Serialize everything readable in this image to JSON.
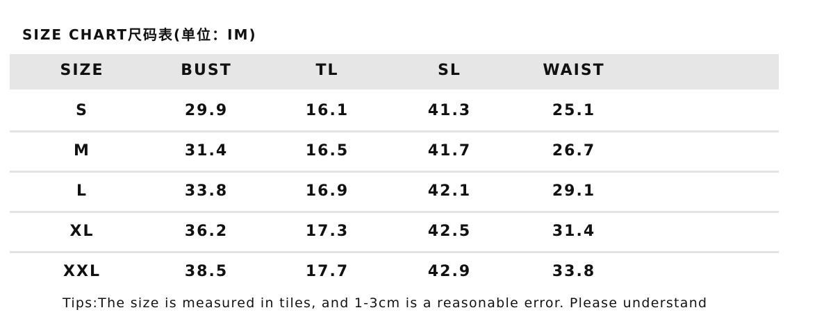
{
  "title": "SIZE CHART尺码表(单位：IM)",
  "table": {
    "header": [
      "SIZE",
      "BUST",
      "TL",
      "SL",
      "WAIST"
    ],
    "rows": [
      [
        "S",
        "29.9",
        "16.1",
        "41.3",
        "25.1"
      ],
      [
        "M",
        "31.4",
        "16.5",
        "41.7",
        "26.7"
      ],
      [
        "L",
        "33.8",
        "16.9",
        "42.1",
        "29.1"
      ],
      [
        "XL",
        "36.2",
        "17.3",
        "42.5",
        "31.4"
      ],
      [
        "XXL",
        "38.5",
        "17.7",
        "42.9",
        "33.8"
      ]
    ]
  },
  "tip": "Tips:The size is measured in tiles, and 1-3cm is a reasonable error. Please understand"
}
